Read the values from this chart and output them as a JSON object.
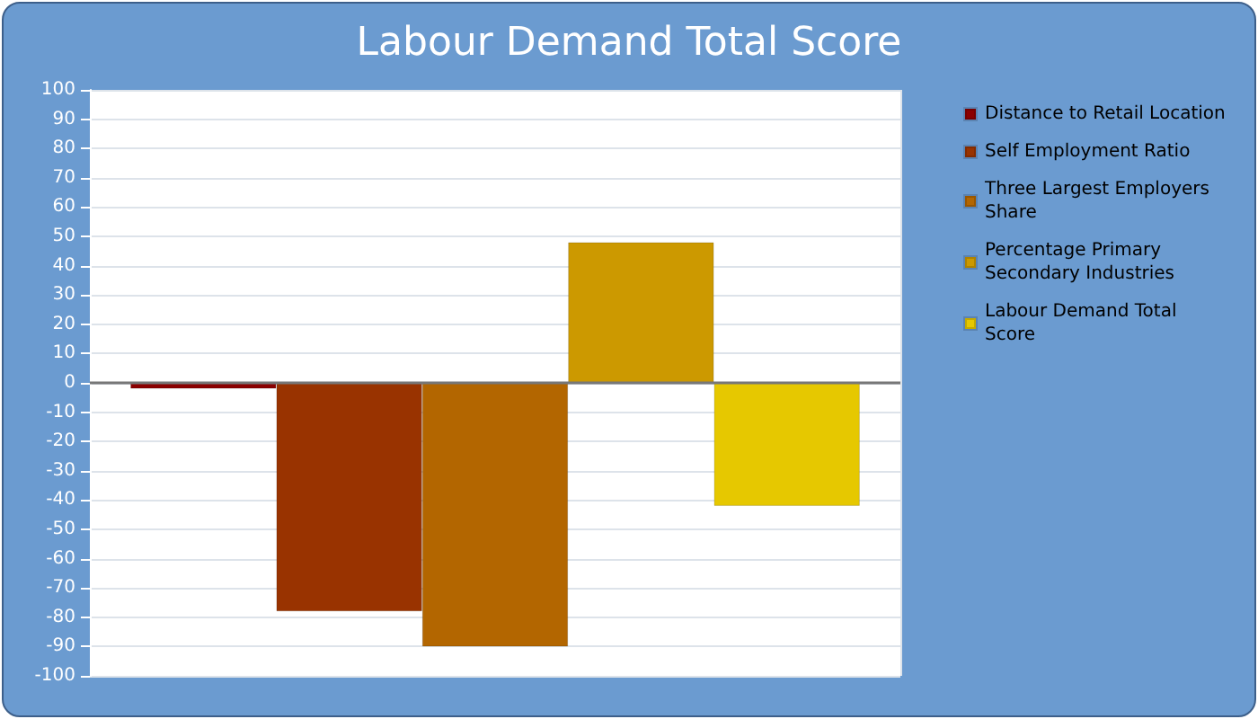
{
  "chart_data": {
    "type": "bar",
    "title": "Labour Demand Total Score",
    "categories": [
      null
    ],
    "series": [
      {
        "name": "Distance to Retail Location",
        "color": "#8b0000",
        "values": [
          -2
        ]
      },
      {
        "name": "Self Employment Ratio",
        "color": "#993300",
        "values": [
          -78
        ]
      },
      {
        "name": "Three Largest Employers Share",
        "color": "#b36600",
        "values": [
          -90
        ]
      },
      {
        "name": "Percentage Primary Secondary Industries",
        "color": "#cc9900",
        "values": [
          48
        ]
      },
      {
        "name": "Labour Demand Total Score",
        "color": "#e6c800",
        "values": [
          -42
        ]
      }
    ],
    "ylim": [
      -100,
      100
    ],
    "yticks": [
      -100,
      -90,
      -80,
      -70,
      -60,
      -50,
      -40,
      -30,
      -20,
      -10,
      0,
      10,
      20,
      30,
      40,
      50,
      60,
      70,
      80,
      90,
      100
    ],
    "grid": true,
    "legend": "right"
  }
}
